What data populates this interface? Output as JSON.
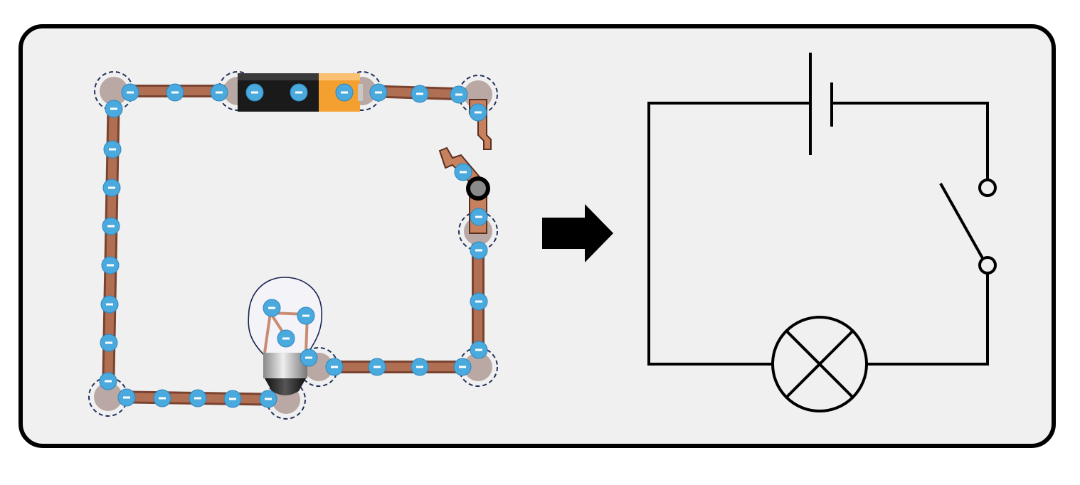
{
  "diagram": {
    "left": {
      "kind": "simulated-circuit",
      "components": [
        "battery",
        "open-switch",
        "light-bulb",
        "copper-wires"
      ],
      "electron_icon": "minus-sign",
      "colors": {
        "wire": "#b06e52",
        "electron": "#4aa9dd",
        "junction": "#b9a8a3",
        "battery_body": "#1a1a1a",
        "battery_cap": "#f4a030"
      }
    },
    "arrow": {
      "icon": "right-arrow-icon",
      "color": "#000000"
    },
    "right": {
      "kind": "schematic",
      "symbols": [
        "cell",
        "open-switch",
        "lamp"
      ],
      "line_color": "#000000"
    }
  }
}
